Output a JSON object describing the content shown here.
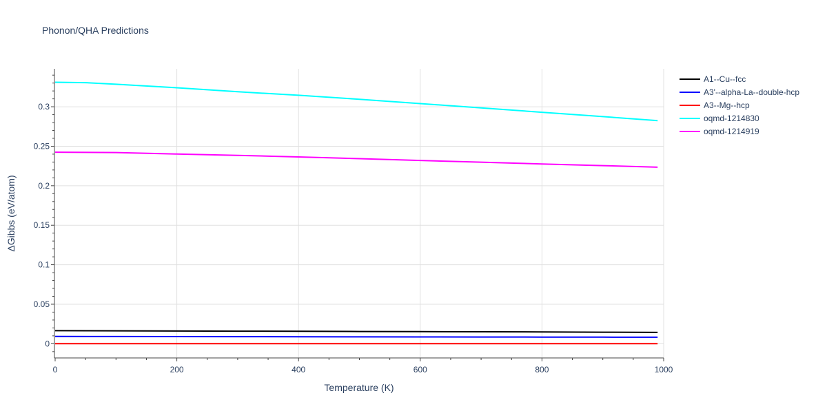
{
  "chart_data": {
    "type": "line",
    "title": "Phonon/QHA Predictions",
    "xlabel": "Temperature (K)",
    "ylabel": "ΔGibbs (eV/atom)",
    "xlim": [
      0,
      1000
    ],
    "ylim": [
      -0.018,
      0.348
    ],
    "x_ticks": [
      0,
      200,
      400,
      600,
      800,
      1000
    ],
    "y_ticks": [
      0,
      0.05,
      0.1,
      0.15,
      0.2,
      0.25,
      0.3
    ],
    "x_tick_labels": [
      "0",
      "200",
      "400",
      "600",
      "800",
      "1000"
    ],
    "y_tick_labels": [
      "0",
      "0.05",
      "0.1",
      "0.15",
      "0.2",
      "0.25",
      "0.3"
    ],
    "grid": true,
    "legend_position": "top-right outside",
    "series": [
      {
        "name": "A1--Cu--fcc",
        "color": "#000000",
        "x": [
          0,
          100,
          200,
          300,
          400,
          500,
          600,
          700,
          800,
          900,
          990
        ],
        "y": [
          0.0165,
          0.0163,
          0.0161,
          0.0159,
          0.0157,
          0.0155,
          0.0153,
          0.0151,
          0.0149,
          0.0146,
          0.0143
        ]
      },
      {
        "name": "A3'--alpha-La--double-hcp",
        "color": "#0000ff",
        "x": [
          0,
          100,
          200,
          300,
          400,
          500,
          600,
          700,
          800,
          900,
          990
        ],
        "y": [
          0.0092,
          0.0091,
          0.009,
          0.0089,
          0.0088,
          0.0087,
          0.0086,
          0.0085,
          0.0084,
          0.0083,
          0.0082
        ]
      },
      {
        "name": "A3--Mg--hcp",
        "color": "#ff0000",
        "x": [
          0,
          990
        ],
        "y": [
          0,
          0
        ]
      },
      {
        "name": "oqmd-1214830",
        "color": "#00ffff",
        "x": [
          0,
          50,
          100,
          200,
          300,
          400,
          500,
          600,
          700,
          800,
          900,
          990
        ],
        "y": [
          0.331,
          0.3305,
          0.3285,
          0.324,
          0.319,
          0.3145,
          0.3095,
          0.304,
          0.2985,
          0.293,
          0.2875,
          0.2825
        ]
      },
      {
        "name": "oqmd-1214919",
        "color": "#ff00ff",
        "x": [
          0,
          100,
          200,
          300,
          400,
          500,
          600,
          700,
          800,
          900,
          990
        ],
        "y": [
          0.2425,
          0.242,
          0.2401,
          0.2385,
          0.2365,
          0.2343,
          0.232,
          0.2298,
          0.2276,
          0.2255,
          0.2235
        ]
      }
    ]
  }
}
